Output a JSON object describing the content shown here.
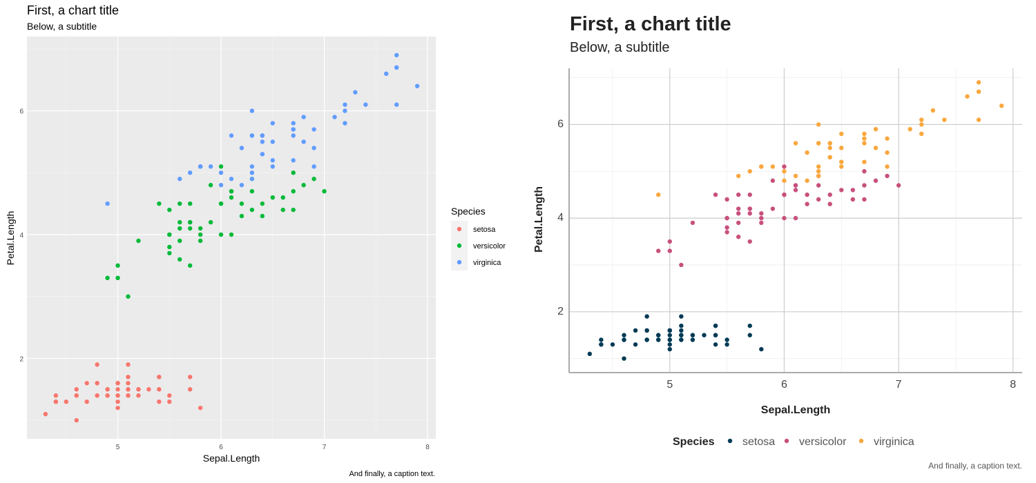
{
  "chart_data": [
    {
      "type": "scatter",
      "title": "First, a chart title",
      "subtitle": "Below, a subtitle",
      "caption": "And finally, a caption text.",
      "xlabel": "Sepal.Length",
      "ylabel": "Petal.Length",
      "xlim": [
        4.12,
        8.08
      ],
      "ylim": [
        0.7,
        7.2
      ],
      "xticks": [
        5,
        6,
        7,
        8
      ],
      "yticks": [
        2,
        4,
        6
      ],
      "grid": true,
      "legend": {
        "title": "Species",
        "position": "right",
        "entries": [
          "setosa",
          "versicolor",
          "virginica"
        ]
      },
      "colors": {
        "setosa": "#F8766D",
        "versicolor": "#00BA38",
        "virginica": "#619CFF"
      }
    },
    {
      "type": "scatter",
      "title": "First, a chart title",
      "subtitle": "Below, a subtitle",
      "caption": "And finally, a caption text.",
      "xlabel": "Sepal.Length",
      "ylabel": "Petal.Length",
      "xlim": [
        4.12,
        8.08
      ],
      "ylim": [
        0.7,
        7.2
      ],
      "xticks": [
        5,
        6,
        7,
        8
      ],
      "yticks": [
        2,
        4,
        6
      ],
      "grid": true,
      "legend": {
        "title": "Species",
        "position": "bottom",
        "entries": [
          "setosa",
          "versicolor",
          "virginica"
        ]
      },
      "colors": {
        "setosa": "#003A55",
        "versicolor": "#C8507D",
        "virginica": "#F9A73E"
      }
    }
  ],
  "series": [
    {
      "name": "setosa",
      "points": [
        [
          5.1,
          1.4
        ],
        [
          4.9,
          1.4
        ],
        [
          4.7,
          1.3
        ],
        [
          4.6,
          1.5
        ],
        [
          5.0,
          1.4
        ],
        [
          5.4,
          1.7
        ],
        [
          4.6,
          1.4
        ],
        [
          5.0,
          1.5
        ],
        [
          4.4,
          1.4
        ],
        [
          4.9,
          1.5
        ],
        [
          5.4,
          1.5
        ],
        [
          4.8,
          1.6
        ],
        [
          4.8,
          1.4
        ],
        [
          4.3,
          1.1
        ],
        [
          5.8,
          1.2
        ],
        [
          5.7,
          1.5
        ],
        [
          5.4,
          1.3
        ],
        [
          5.1,
          1.4
        ],
        [
          5.7,
          1.7
        ],
        [
          5.1,
          1.5
        ],
        [
          5.4,
          1.7
        ],
        [
          5.1,
          1.5
        ],
        [
          4.6,
          1.0
        ],
        [
          5.1,
          1.7
        ],
        [
          4.8,
          1.9
        ],
        [
          5.0,
          1.6
        ],
        [
          5.0,
          1.6
        ],
        [
          5.2,
          1.5
        ],
        [
          5.2,
          1.4
        ],
        [
          4.7,
          1.6
        ],
        [
          4.8,
          1.6
        ],
        [
          5.4,
          1.5
        ],
        [
          5.2,
          1.5
        ],
        [
          5.5,
          1.4
        ],
        [
          4.9,
          1.5
        ],
        [
          5.0,
          1.2
        ],
        [
          5.5,
          1.3
        ],
        [
          4.9,
          1.4
        ],
        [
          4.4,
          1.3
        ],
        [
          5.1,
          1.5
        ],
        [
          5.0,
          1.3
        ],
        [
          4.5,
          1.3
        ],
        [
          4.4,
          1.3
        ],
        [
          5.0,
          1.6
        ],
        [
          5.1,
          1.9
        ],
        [
          4.8,
          1.4
        ],
        [
          5.1,
          1.6
        ],
        [
          4.6,
          1.4
        ],
        [
          5.3,
          1.5
        ],
        [
          5.0,
          1.4
        ]
      ]
    },
    {
      "name": "versicolor",
      "points": [
        [
          7.0,
          4.7
        ],
        [
          6.4,
          4.5
        ],
        [
          6.9,
          4.9
        ],
        [
          5.5,
          4.0
        ],
        [
          6.5,
          4.6
        ],
        [
          5.7,
          4.5
        ],
        [
          6.3,
          4.7
        ],
        [
          4.9,
          3.3
        ],
        [
          6.6,
          4.6
        ],
        [
          5.2,
          3.9
        ],
        [
          5.0,
          3.5
        ],
        [
          5.9,
          4.2
        ],
        [
          6.0,
          4.0
        ],
        [
          6.1,
          4.7
        ],
        [
          5.6,
          3.6
        ],
        [
          6.7,
          4.4
        ],
        [
          5.6,
          4.5
        ],
        [
          5.8,
          4.1
        ],
        [
          6.2,
          4.5
        ],
        [
          5.6,
          3.9
        ],
        [
          5.9,
          4.8
        ],
        [
          6.1,
          4.0
        ],
        [
          6.3,
          4.9
        ],
        [
          6.1,
          4.7
        ],
        [
          6.4,
          4.3
        ],
        [
          6.6,
          4.4
        ],
        [
          6.8,
          4.8
        ],
        [
          6.7,
          5.0
        ],
        [
          6.0,
          4.5
        ],
        [
          5.7,
          3.5
        ],
        [
          5.5,
          3.8
        ],
        [
          5.5,
          3.7
        ],
        [
          5.8,
          3.9
        ],
        [
          6.0,
          5.1
        ],
        [
          5.4,
          4.5
        ],
        [
          6.0,
          4.5
        ],
        [
          6.7,
          4.7
        ],
        [
          6.3,
          4.4
        ],
        [
          5.6,
          4.1
        ],
        [
          5.5,
          4.0
        ],
        [
          5.5,
          4.4
        ],
        [
          6.1,
          4.6
        ],
        [
          5.8,
          4.0
        ],
        [
          5.0,
          3.3
        ],
        [
          5.6,
          4.2
        ],
        [
          5.7,
          4.2
        ],
        [
          5.7,
          4.2
        ],
        [
          6.2,
          4.3
        ],
        [
          5.1,
          3.0
        ],
        [
          5.7,
          4.1
        ]
      ]
    },
    {
      "name": "virginica",
      "points": [
        [
          6.3,
          6.0
        ],
        [
          5.8,
          5.1
        ],
        [
          7.1,
          5.9
        ],
        [
          6.3,
          5.6
        ],
        [
          6.5,
          5.8
        ],
        [
          7.6,
          6.6
        ],
        [
          4.9,
          4.5
        ],
        [
          7.3,
          6.3
        ],
        [
          6.7,
          5.8
        ],
        [
          7.2,
          6.1
        ],
        [
          6.5,
          5.1
        ],
        [
          6.4,
          5.3
        ],
        [
          6.8,
          5.5
        ],
        [
          5.7,
          5.0
        ],
        [
          5.8,
          5.1
        ],
        [
          6.4,
          5.3
        ],
        [
          6.5,
          5.5
        ],
        [
          7.7,
          6.7
        ],
        [
          7.7,
          6.9
        ],
        [
          6.0,
          5.0
        ],
        [
          6.9,
          5.7
        ],
        [
          5.6,
          4.9
        ],
        [
          7.7,
          6.7
        ],
        [
          6.3,
          4.9
        ],
        [
          6.7,
          5.7
        ],
        [
          7.2,
          6.0
        ],
        [
          6.2,
          4.8
        ],
        [
          6.1,
          4.9
        ],
        [
          6.4,
          5.6
        ],
        [
          7.2,
          5.8
        ],
        [
          7.4,
          6.1
        ],
        [
          7.9,
          6.4
        ],
        [
          6.4,
          5.6
        ],
        [
          6.3,
          5.1
        ],
        [
          6.1,
          5.6
        ],
        [
          7.7,
          6.1
        ],
        [
          6.3,
          5.6
        ],
        [
          6.4,
          5.5
        ],
        [
          6.0,
          4.8
        ],
        [
          6.9,
          5.4
        ],
        [
          6.7,
          5.6
        ],
        [
          6.9,
          5.1
        ],
        [
          5.8,
          5.1
        ],
        [
          6.8,
          5.9
        ],
        [
          6.7,
          5.7
        ],
        [
          6.7,
          5.2
        ],
        [
          6.3,
          5.0
        ],
        [
          6.5,
          5.2
        ],
        [
          6.2,
          5.4
        ],
        [
          5.9,
          5.1
        ]
      ]
    }
  ]
}
